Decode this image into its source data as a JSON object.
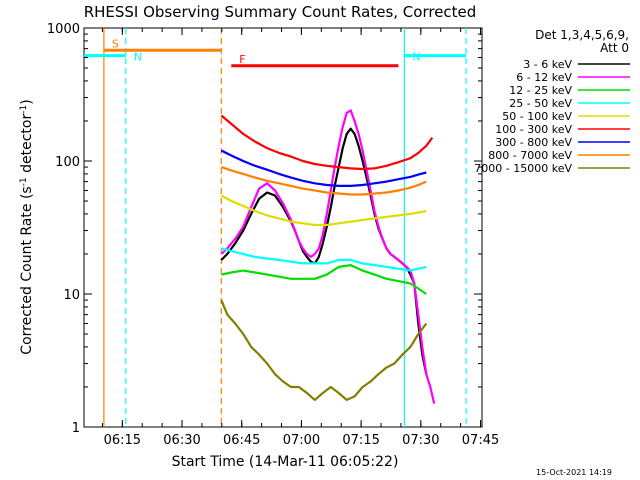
{
  "chart_data": {
    "type": "line",
    "title": "RHESSI Observing Summary Count Rates, Corrected",
    "xlabel": "Start Time (14-Mar-11 06:05:22)",
    "ylabel_main": "Corrected Count Rate (s",
    "ylabel_sup1": "-1",
    "ylabel_mid": " detector",
    "ylabel_sup2": "-1",
    "ylabel_end": ")",
    "y_scale": "log",
    "ylim": [
      1,
      1000
    ],
    "xlim_minutes": [
      0,
      100
    ],
    "x_ticks": [
      {
        "label": "06:15",
        "minute": 9.63
      },
      {
        "label": "06:30",
        "minute": 24.63
      },
      {
        "label": "06:45",
        "minute": 39.63
      },
      {
        "label": "07:00",
        "minute": 54.63
      },
      {
        "label": "07:15",
        "minute": 69.63
      },
      {
        "label": "07:30",
        "minute": 84.63
      },
      {
        "label": "07:45",
        "minute": 99.63
      }
    ],
    "y_ticks": [
      {
        "label": "1",
        "value": 1
      },
      {
        "label": "10",
        "value": 10
      },
      {
        "label": "100",
        "value": 100
      },
      {
        "label": "1000",
        "value": 1000
      }
    ],
    "legend_header": [
      "Det 1,3,4,5,6,9,",
      "Att 0"
    ],
    "legend_position": "top-right-outside",
    "series": [
      {
        "name": "3 - 6 keV",
        "color": "#000000",
        "x": [
          34.5,
          36,
          38,
          40,
          42,
          44,
          46,
          48,
          50,
          52,
          53,
          54,
          55,
          56,
          57,
          58,
          59,
          60,
          61,
          62,
          63,
          64,
          65,
          66,
          67,
          68,
          69,
          70,
          71,
          72,
          73,
          74,
          75,
          76,
          77,
          78,
          79,
          80,
          81,
          82,
          83,
          84,
          85,
          86
        ],
        "y": [
          18,
          20,
          24,
          30,
          40,
          52,
          58,
          55,
          45,
          35,
          30,
          25,
          21,
          19,
          17.5,
          17,
          19,
          24,
          32,
          45,
          65,
          90,
          125,
          160,
          175,
          160,
          130,
          100,
          75,
          55,
          40,
          31,
          26,
          22,
          20,
          19,
          18,
          17,
          16,
          14,
          12,
          6,
          3.5,
          2.5
        ]
      },
      {
        "name": "6 - 12 keV",
        "color": "#ff00ff",
        "x": [
          34.5,
          36,
          38,
          40,
          42,
          44,
          46,
          48,
          50,
          52,
          53,
          54,
          55,
          56,
          57,
          58,
          59,
          60,
          61,
          62,
          63,
          64,
          65,
          66,
          67,
          68,
          69,
          70,
          71,
          72,
          73,
          74,
          75,
          76,
          77,
          78,
          79,
          80,
          81,
          82,
          83,
          84,
          85,
          86,
          87,
          88
        ],
        "y": [
          20,
          22,
          26,
          32,
          45,
          62,
          68,
          60,
          48,
          36,
          30,
          25,
          22,
          20,
          19,
          20,
          22,
          28,
          40,
          60,
          90,
          130,
          180,
          230,
          240,
          200,
          160,
          120,
          85,
          60,
          42,
          32,
          26,
          22,
          20,
          19,
          18,
          17,
          16,
          15,
          12,
          7,
          4,
          2.5,
          2,
          1.5
        ]
      },
      {
        "name": "12 - 25 keV",
        "color": "#00dd00",
        "x": [
          34.5,
          37,
          40,
          43,
          46,
          49,
          52,
          55,
          58,
          61,
          64,
          67,
          70,
          73,
          76,
          79,
          82,
          84,
          86
        ],
        "y": [
          14,
          14.5,
          15,
          14.5,
          14,
          13.5,
          13,
          13,
          13,
          14,
          16,
          16.5,
          15,
          14,
          13,
          12.5,
          12,
          11,
          10
        ]
      },
      {
        "name": "25 - 50 keV",
        "color": "#00ffff",
        "x": [
          34.5,
          37,
          40,
          43,
          46,
          49,
          52,
          55,
          58,
          61,
          64,
          67,
          70,
          73,
          76,
          79,
          82,
          84,
          86
        ],
        "y": [
          22,
          21,
          20,
          19,
          18.5,
          18,
          17.5,
          17,
          17,
          17,
          18,
          18,
          17,
          16.5,
          16,
          15.5,
          15,
          15.5,
          16
        ]
      },
      {
        "name": "50 - 100 keV",
        "color": "#dddd00",
        "x": [
          34.5,
          37,
          40,
          43,
          46,
          49,
          52,
          55,
          58,
          61,
          64,
          67,
          70,
          73,
          76,
          79,
          82,
          84,
          86
        ],
        "y": [
          55,
          50,
          46,
          42,
          39,
          37,
          35,
          34,
          33,
          33,
          34,
          35,
          36,
          37,
          38,
          39,
          40,
          41,
          42
        ]
      },
      {
        "name": "100 - 300 keV",
        "color": "#ff0000",
        "x": [
          34.5,
          37,
          40,
          43,
          46,
          49,
          52,
          55,
          58,
          61,
          64,
          67,
          70,
          73,
          76,
          79,
          82,
          84,
          86,
          87.5
        ],
        "y": [
          220,
          190,
          160,
          140,
          125,
          115,
          108,
          100,
          95,
          92,
          90,
          88,
          87,
          88,
          92,
          98,
          105,
          115,
          130,
          150
        ]
      },
      {
        "name": "300 - 800 keV",
        "color": "#0000ff",
        "x": [
          34.5,
          37,
          40,
          43,
          46,
          49,
          52,
          55,
          58,
          61,
          64,
          67,
          70,
          73,
          76,
          79,
          82,
          84,
          86
        ],
        "y": [
          120,
          110,
          100,
          92,
          86,
          80,
          75,
          71,
          68,
          66,
          65,
          65,
          66,
          68,
          70,
          73,
          76,
          79,
          82
        ]
      },
      {
        "name": "800 - 7000 keV",
        "color": "#ff8000",
        "x": [
          34.5,
          37,
          40,
          43,
          46,
          49,
          52,
          55,
          58,
          61,
          64,
          67,
          70,
          73,
          76,
          79,
          82,
          84,
          86
        ],
        "y": [
          90,
          85,
          80,
          75,
          71,
          68,
          65,
          62,
          60,
          58,
          57,
          56,
          56,
          57,
          58,
          60,
          63,
          66,
          70
        ]
      },
      {
        "name": "7000 - 15000 keV",
        "color": "#808000",
        "x": [
          34.5,
          36,
          38,
          40,
          42,
          44,
          46,
          48,
          50,
          52,
          54,
          56,
          58,
          60,
          62,
          64,
          66,
          68,
          70,
          72,
          74,
          76,
          78,
          80,
          82,
          84,
          86
        ],
        "y": [
          9,
          7,
          6,
          5,
          4,
          3.5,
          3,
          2.5,
          2.2,
          2,
          2,
          1.8,
          1.6,
          1.8,
          2,
          1.8,
          1.6,
          1.7,
          2,
          2.2,
          2.5,
          2.8,
          3,
          3.5,
          4,
          5,
          6
        ]
      }
    ],
    "annotations": [
      {
        "label": "S",
        "color": "#ff8000",
        "start": 5,
        "end": 34.5,
        "y_value": 680
      },
      {
        "label": "N",
        "color": "#00ffff",
        "start": 0,
        "end": 10.5,
        "y_value": 620
      },
      {
        "label": "N",
        "color": "#00ffff",
        "start": 80.5,
        "end": 96,
        "y_value": 620
      },
      {
        "label": "F",
        "color": "#ff0000",
        "start": 37,
        "end": 79,
        "y_value": 520
      }
    ],
    "vertical_lines": [
      {
        "minute": 5.0,
        "color": "#ff8000",
        "style": "solid"
      },
      {
        "minute": 10.5,
        "color": "#00ffff",
        "style": "dashed"
      },
      {
        "minute": 34.5,
        "color": "#ff8000",
        "style": "dashed"
      },
      {
        "minute": 80.5,
        "color": "#00ffff",
        "style": "solid"
      },
      {
        "minute": 96.0,
        "color": "#00ffff",
        "style": "dashed"
      }
    ],
    "footer_timestamp": "15-Oct-2021 14:19"
  }
}
